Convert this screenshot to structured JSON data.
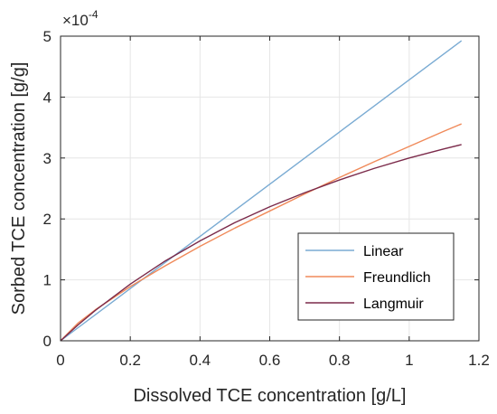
{
  "chart_data": {
    "type": "line",
    "xlabel": "Dissolved TCE concentration [g/L]",
    "ylabel": "Sorbed TCE concentration [g/g]",
    "xlim": [
      0,
      1.2
    ],
    "ylim": [
      0,
      5
    ],
    "x_ticks": [
      "0",
      "0.2",
      "0.4",
      "0.6",
      "0.8",
      "1",
      "1.2"
    ],
    "y_ticks": [
      "0",
      "1",
      "2",
      "3",
      "4",
      "5"
    ],
    "y_multiplier": {
      "base": "×10",
      "exponent": "-4"
    },
    "grid": true,
    "legend_position": "lower-right",
    "series": [
      {
        "name": "Linear",
        "color": "#7aabd3",
        "x": [
          0,
          0.2,
          0.4,
          0.6,
          0.8,
          1.0,
          1.15
        ],
        "y": [
          0,
          0.857,
          1.713,
          2.57,
          3.427,
          4.283,
          4.925
        ]
      },
      {
        "name": "Freundlich",
        "color": "#f08a5a",
        "x": [
          0,
          0.05,
          0.1,
          0.2,
          0.3,
          0.4,
          0.5,
          0.6,
          0.7,
          0.8,
          0.9,
          1.0,
          1.1,
          1.15
        ],
        "y": [
          0,
          0.29,
          0.51,
          0.89,
          1.23,
          1.55,
          1.85,
          2.13,
          2.41,
          2.68,
          2.94,
          3.19,
          3.44,
          3.56
        ]
      },
      {
        "name": "Langmuir",
        "color": "#7b2a4a",
        "x": [
          0,
          0.05,
          0.1,
          0.2,
          0.3,
          0.4,
          0.5,
          0.6,
          0.7,
          0.8,
          0.9,
          1.0,
          1.1,
          1.15
        ],
        "y": [
          0,
          0.26,
          0.5,
          0.93,
          1.31,
          1.64,
          1.94,
          2.2,
          2.43,
          2.64,
          2.83,
          3.0,
          3.15,
          3.22
        ]
      }
    ]
  }
}
